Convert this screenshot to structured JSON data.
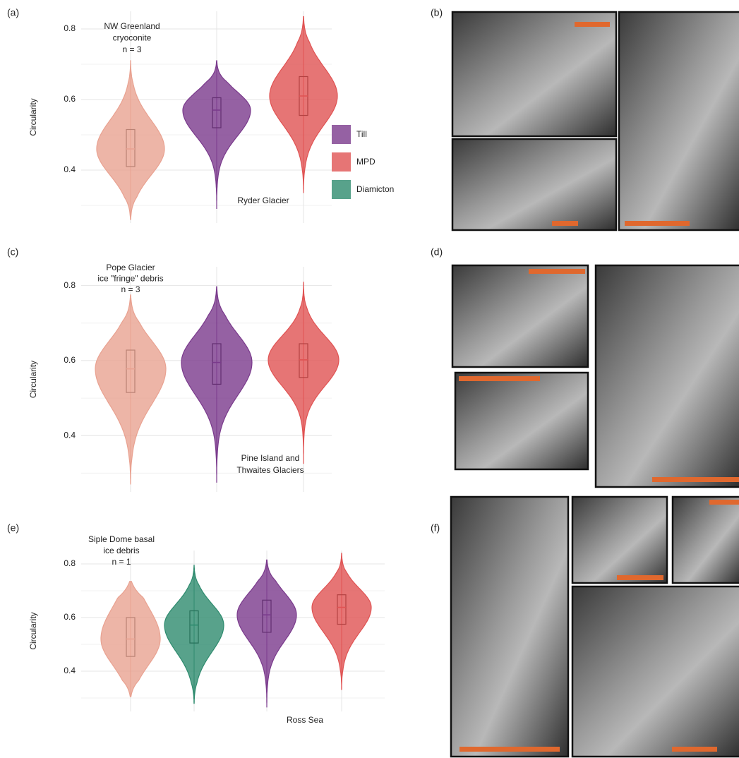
{
  "chart_data": [
    {
      "type": "violin",
      "panel": "(a)",
      "ylabel": "Circularity",
      "annotation": [
        "NW Greenland",
        "cryoconite",
        "n = 3"
      ],
      "site": [
        "Ryder Glacier"
      ],
      "ylim": [
        0.25,
        0.85
      ],
      "yticks": [
        0.4,
        0.6,
        0.8
      ],
      "minor_yticks": [
        0.3,
        0.5,
        0.7
      ],
      "grid": true,
      "series": [
        {
          "color": "#e9a291",
          "min": 0.26,
          "q1": 0.41,
          "median": 0.46,
          "q3": 0.515,
          "max": 0.71
        },
        {
          "name": "Till",
          "color": "#7a3a8c",
          "min": 0.29,
          "q1": 0.52,
          "median": 0.57,
          "q3": 0.605,
          "max": 0.71
        },
        {
          "name": "MPD",
          "color": "#e05353",
          "min": 0.335,
          "q1": 0.555,
          "median": 0.61,
          "q3": 0.665,
          "max": 0.835
        }
      ]
    },
    {
      "type": "violin",
      "panel": "(c)",
      "ylabel": "Circularity",
      "annotation": [
        "Pope Glacier",
        "ice \"fringe\" debris",
        "n = 3"
      ],
      "site": [
        "Pine Island and",
        "Thwaites Glaciers"
      ],
      "ylim": [
        0.25,
        0.85
      ],
      "yticks": [
        0.4,
        0.6,
        0.8
      ],
      "minor_yticks": [
        0.3,
        0.5,
        0.7
      ],
      "grid": true,
      "series": [
        {
          "color": "#e9a291",
          "min": 0.27,
          "q1": 0.515,
          "median": 0.578,
          "q3": 0.628,
          "max": 0.775
        },
        {
          "name": "Till",
          "color": "#7a3a8c",
          "min": 0.275,
          "q1": 0.537,
          "median": 0.595,
          "q3": 0.645,
          "max": 0.797
        },
        {
          "name": "MPD",
          "color": "#e05353",
          "min": 0.325,
          "q1": 0.555,
          "median": 0.602,
          "q3": 0.645,
          "max": 0.81
        }
      ]
    },
    {
      "type": "violin",
      "panel": "(e)",
      "ylabel": "Circularity",
      "annotation": [
        "Siple Dome basal",
        "ice debris",
        "n = 1"
      ],
      "site": [
        "Ross Sea"
      ],
      "ylim": [
        0.25,
        0.85
      ],
      "yticks": [
        0.4,
        0.6,
        0.8
      ],
      "minor_yticks": [
        0.3,
        0.5,
        0.7
      ],
      "grid": true,
      "series": [
        {
          "color": "#e9a291",
          "min": 0.305,
          "q1": 0.455,
          "median": 0.52,
          "q3": 0.6,
          "max": 0.735
        },
        {
          "name": "Diamicton",
          "color": "#2e8b6e",
          "min": 0.28,
          "q1": 0.505,
          "median": 0.572,
          "q3": 0.625,
          "max": 0.795
        },
        {
          "name": "Till",
          "color": "#7a3a8c",
          "min": 0.265,
          "q1": 0.545,
          "median": 0.61,
          "q3": 0.665,
          "max": 0.815
        },
        {
          "name": "MPD",
          "color": "#e05353",
          "min": 0.33,
          "q1": 0.575,
          "median": 0.638,
          "q3": 0.685,
          "max": 0.84
        }
      ]
    }
  ],
  "legend": [
    {
      "name": "Till",
      "color": "#7a3a8c"
    },
    {
      "name": "MPD",
      "color": "#e05353"
    },
    {
      "name": "Diamicton",
      "color": "#2e8b6e"
    }
  ],
  "image_panels": [
    "(b)",
    "(d)",
    "(f)"
  ]
}
